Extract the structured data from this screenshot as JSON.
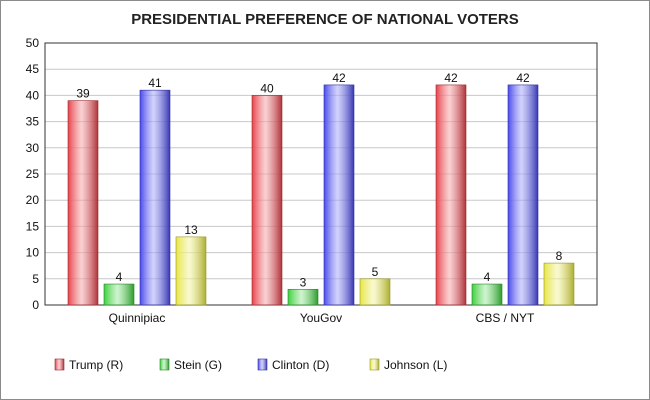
{
  "chart_data": {
    "type": "bar",
    "title": "PRESIDENTIAL PREFERENCE OF NATIONAL VOTERS",
    "xlabel": "",
    "ylabel": "",
    "ylim": [
      0,
      50
    ],
    "yticks": [
      0,
      5,
      10,
      15,
      20,
      25,
      30,
      35,
      40,
      45,
      50
    ],
    "grid": true,
    "legend_position": "bottom-left",
    "categories": [
      "Quinnipiac",
      "YouGov",
      "CBS / NYT"
    ],
    "series": [
      {
        "name": "Trump (R)",
        "color": "#e8424a",
        "values": [
          39,
          40,
          42
        ]
      },
      {
        "name": "Stein (G)",
        "color": "#3ccf3c",
        "values": [
          4,
          3,
          4
        ]
      },
      {
        "name": "Clinton (D)",
        "color": "#4a4aee",
        "values": [
          41,
          42,
          42
        ]
      },
      {
        "name": "Johnson (L)",
        "color": "#e6e642",
        "values": [
          13,
          5,
          8
        ]
      }
    ],
    "data_labels": true
  }
}
